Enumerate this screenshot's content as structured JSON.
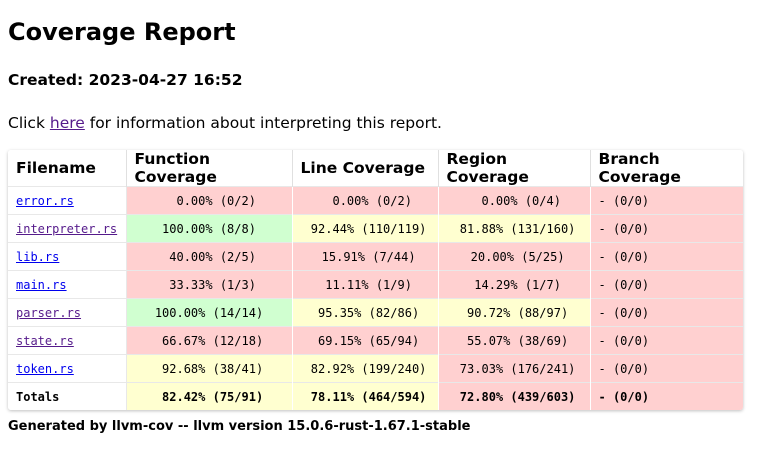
{
  "page": {
    "title": "Coverage Report",
    "created": "Created: 2023-04-27 16:52",
    "info_prefix": "Click ",
    "info_link": "here",
    "info_suffix": " for information about interpreting this report.",
    "footer": "Generated by llvm-cov -- llvm version 15.0.6-rust-1.67.1-stable"
  },
  "table": {
    "headers": [
      "Filename",
      "Function Coverage",
      "Line Coverage",
      "Region Coverage",
      "Branch Coverage"
    ],
    "rows": [
      {
        "file": "error.rs",
        "visited": false,
        "func": "  0.00% (0/2)",
        "func_c": "red",
        "line": "  0.00% (0/2)",
        "line_c": "red",
        "region": "  0.00% (0/4)",
        "region_c": "red",
        "branch": "- (0/0)",
        "branch_c": "red"
      },
      {
        "file": "interpreter.rs",
        "visited": true,
        "func": "100.00% (8/8)",
        "func_c": "green",
        "line": " 92.44% (110/119)",
        "line_c": "yellow",
        "region": " 81.88% (131/160)",
        "region_c": "yellow",
        "branch": "- (0/0)",
        "branch_c": "red"
      },
      {
        "file": "lib.rs",
        "visited": false,
        "func": " 40.00% (2/5)",
        "func_c": "red",
        "line": " 15.91% (7/44)",
        "line_c": "red",
        "region": " 20.00% (5/25)",
        "region_c": "red",
        "branch": "- (0/0)",
        "branch_c": "red"
      },
      {
        "file": "main.rs",
        "visited": false,
        "func": " 33.33% (1/3)",
        "func_c": "red",
        "line": " 11.11% (1/9)",
        "line_c": "red",
        "region": " 14.29% (1/7)",
        "region_c": "red",
        "branch": "- (0/0)",
        "branch_c": "red"
      },
      {
        "file": "parser.rs",
        "visited": true,
        "func": "100.00% (14/14)",
        "func_c": "green",
        "line": " 95.35% (82/86)",
        "line_c": "yellow",
        "region": " 90.72% (88/97)",
        "region_c": "yellow",
        "branch": "- (0/0)",
        "branch_c": "red"
      },
      {
        "file": "state.rs",
        "visited": true,
        "func": " 66.67% (12/18)",
        "func_c": "red",
        "line": " 69.15% (65/94)",
        "line_c": "red",
        "region": " 55.07% (38/69)",
        "region_c": "red",
        "branch": "- (0/0)",
        "branch_c": "red"
      },
      {
        "file": "token.rs",
        "visited": false,
        "func": " 92.68% (38/41)",
        "func_c": "yellow",
        "line": " 82.92% (199/240)",
        "line_c": "yellow",
        "region": " 73.03% (176/241)",
        "region_c": "red",
        "branch": "- (0/0)",
        "branch_c": "red"
      }
    ],
    "totals": {
      "label": "Totals",
      "func": " 82.42% (75/91)",
      "func_c": "yellow",
      "line": " 78.11% (464/594)",
      "line_c": "yellow",
      "region": " 72.80% (439/603)",
      "region_c": "red",
      "branch": "- (0/0)",
      "branch_c": "red"
    }
  },
  "colors": {
    "red": "#ffd0d0",
    "green": "#d0ffd0",
    "yellow": "#ffffd0",
    "link": "#0000ee",
    "visited_link": "#551a8b"
  }
}
